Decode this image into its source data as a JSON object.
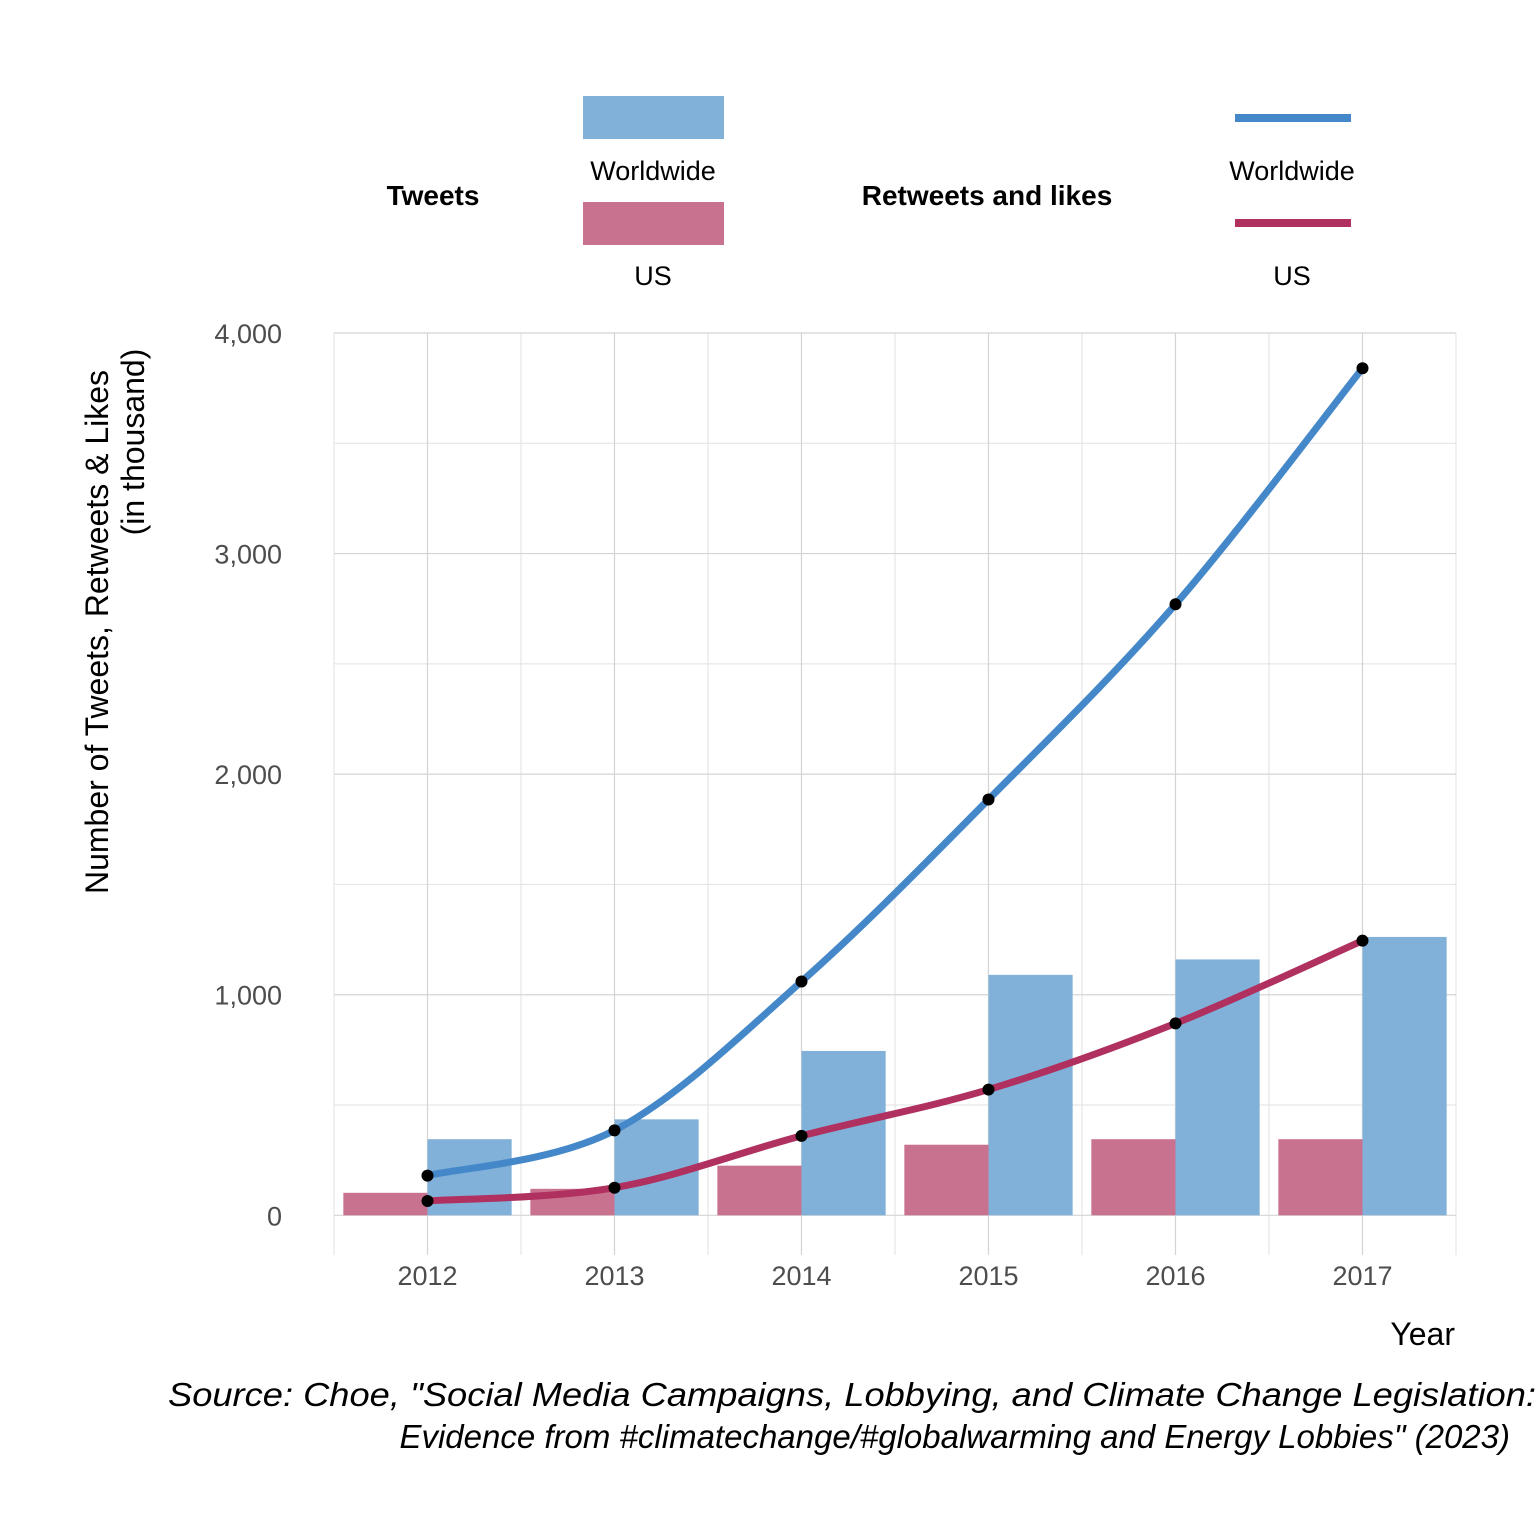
{
  "chart_data": {
    "type": "bar",
    "categories": [
      "2012",
      "2013",
      "2014",
      "2015",
      "2016",
      "2017"
    ],
    "bar_series": [
      {
        "name": "US",
        "legend_group": "Tweets",
        "color": "#c9728f",
        "values": [
          102,
          120,
          225,
          320,
          345,
          345
        ]
      },
      {
        "name": "Worldwide",
        "legend_group": "Tweets",
        "color": "#81b0d9",
        "values": [
          345,
          435,
          745,
          1090,
          1160,
          1262
        ]
      }
    ],
    "line_series": [
      {
        "name": "Worldwide",
        "legend_group": "Retweets and likes",
        "color": "#4488c9",
        "values": [
          180,
          385,
          1060,
          1885,
          2770,
          3840
        ]
      },
      {
        "name": "US",
        "legend_group": "Retweets and likes",
        "color": "#b0305f",
        "values": [
          65,
          125,
          360,
          570,
          870,
          1245
        ]
      }
    ],
    "point_color": "#000000",
    "ylim": [
      -180,
      4000
    ],
    "yticks": [
      0,
      1000,
      2000,
      3000,
      4000
    ],
    "ytick_labels": [
      "0",
      "1,000",
      "2,000",
      "3,000",
      "4,000"
    ],
    "xlabel": "Year",
    "ylabel": [
      "Number of Tweets, Retweets & Likes",
      "(in thousand)"
    ],
    "legend": {
      "position": "top",
      "groups": [
        {
          "title": "Tweets",
          "items": [
            {
              "label": "Worldwide"
            },
            {
              "label": "US"
            }
          ]
        },
        {
          "title": "Retweets and likes",
          "items": [
            {
              "label": "Worldwide"
            },
            {
              "label": "US"
            }
          ]
        }
      ]
    },
    "caption": [
      "Source: Choe, \"Social Media Campaigns, Lobbying, and Climate Change Legislation:",
      "Evidence from #climatechange/#globalwarming and Energy Lobbies\" (2023)"
    ],
    "grid": true
  }
}
